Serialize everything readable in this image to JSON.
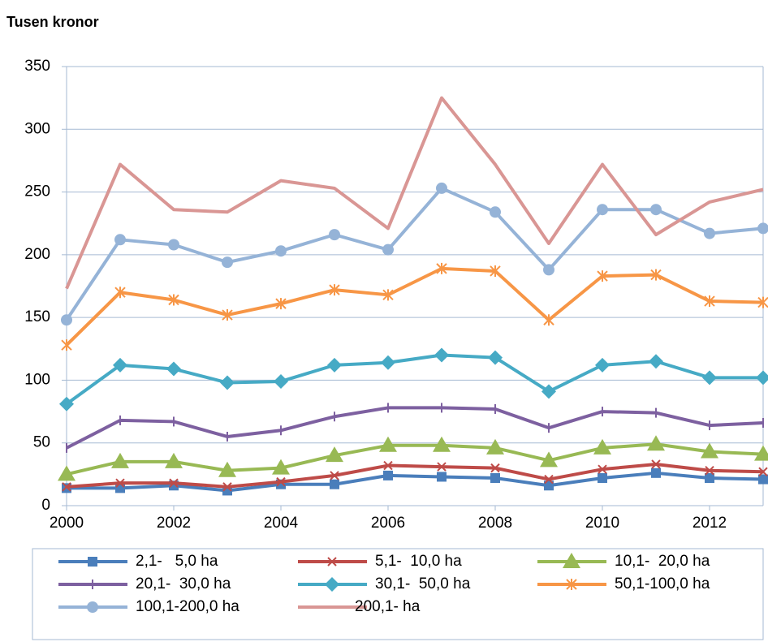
{
  "chart_data": {
    "type": "line",
    "title": "Tusen kronor",
    "x": [
      2000,
      2001,
      2002,
      2003,
      2004,
      2005,
      2006,
      2007,
      2008,
      2009,
      2010,
      2011,
      2012,
      2013
    ],
    "xlim": [
      2000,
      2013
    ],
    "xticks": [
      2000,
      2002,
      2004,
      2006,
      2008,
      2010,
      2012
    ],
    "ylim": [
      0,
      350
    ],
    "yticks": [
      0,
      50,
      100,
      150,
      200,
      250,
      300,
      350
    ],
    "grid": true,
    "legend": "bottom",
    "series": [
      {
        "name": "2,1-   5,0 ha",
        "color": "#4a7ebb",
        "marker": "square",
        "values": [
          14,
          14,
          16,
          12,
          17,
          17,
          24,
          23,
          22,
          16,
          22,
          26,
          22,
          21
        ]
      },
      {
        "name": "5,1-  10,0 ha",
        "color": "#be4b48",
        "marker": "x",
        "values": [
          15,
          18,
          18,
          15,
          19,
          24,
          32,
          31,
          30,
          21,
          29,
          33,
          28,
          27
        ]
      },
      {
        "name": "10,1-  20,0 ha",
        "color": "#98b954",
        "marker": "triangle",
        "values": [
          25,
          35,
          35,
          28,
          30,
          40,
          48,
          48,
          46,
          36,
          46,
          49,
          43,
          41
        ]
      },
      {
        "name": "20,1-  30,0 ha",
        "color": "#7d60a0",
        "marker": "plus",
        "values": [
          46,
          68,
          67,
          55,
          60,
          71,
          78,
          78,
          77,
          62,
          75,
          74,
          64,
          66
        ]
      },
      {
        "name": "30,1-  50,0 ha",
        "color": "#46aac5",
        "marker": "diamond",
        "values": [
          81,
          112,
          109,
          98,
          99,
          112,
          114,
          120,
          118,
          91,
          112,
          115,
          102,
          102
        ]
      },
      {
        "name": "50,1-100,0 ha",
        "color": "#f79646",
        "marker": "star",
        "values": [
          128,
          170,
          164,
          152,
          161,
          172,
          168,
          189,
          187,
          148,
          183,
          184,
          163,
          162
        ]
      },
      {
        "name": "100,1-200,0 ha",
        "color": "#95b3d7",
        "marker": "circle",
        "values": [
          148,
          212,
          208,
          194,
          203,
          216,
          204,
          253,
          234,
          188,
          236,
          236,
          217,
          221
        ]
      },
      {
        "name": "200,1- ha",
        "color": "#d99694",
        "marker": "none",
        "values": [
          173,
          272,
          236,
          234,
          259,
          253,
          221,
          325,
          272,
          209,
          272,
          216,
          242,
          252
        ]
      }
    ]
  }
}
